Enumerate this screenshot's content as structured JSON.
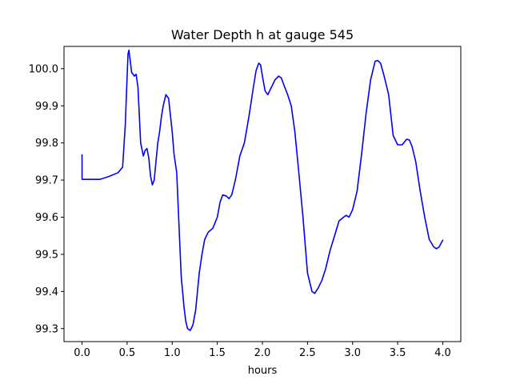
{
  "chart_data": {
    "type": "line",
    "title": "Water Depth h at gauge 545",
    "xlabel": "hours",
    "ylabel": "",
    "xlim": [
      -0.2,
      4.2
    ],
    "ylim": [
      99.265,
      100.06
    ],
    "xticks": [
      0.0,
      0.5,
      1.0,
      1.5,
      2.0,
      2.5,
      3.0,
      3.5,
      4.0
    ],
    "xtick_labels": [
      "0.0",
      "0.5",
      "1.0",
      "1.5",
      "2.0",
      "2.5",
      "3.0",
      "3.5",
      "4.0"
    ],
    "yticks": [
      99.3,
      99.4,
      99.5,
      99.6,
      99.7,
      99.8,
      99.9,
      100.0
    ],
    "ytick_labels": [
      "99.3",
      "99.4",
      "99.5",
      "99.6",
      "99.7",
      "99.8",
      "99.9",
      "100.0"
    ],
    "grid": false,
    "series": [
      {
        "color": "#0000ff",
        "x": [
          0.0,
          0.0,
          0.05,
          0.1,
          0.2,
          0.3,
          0.4,
          0.45,
          0.48,
          0.5,
          0.51,
          0.52,
          0.53,
          0.55,
          0.58,
          0.6,
          0.62,
          0.65,
          0.68,
          0.7,
          0.72,
          0.74,
          0.76,
          0.78,
          0.8,
          0.82,
          0.84,
          0.86,
          0.88,
          0.9,
          0.93,
          0.96,
          1.0,
          1.02,
          1.05,
          1.08,
          1.1,
          1.13,
          1.15,
          1.17,
          1.2,
          1.23,
          1.26,
          1.28,
          1.3,
          1.33,
          1.36,
          1.4,
          1.45,
          1.5,
          1.53,
          1.56,
          1.6,
          1.63,
          1.66,
          1.7,
          1.75,
          1.8,
          1.85,
          1.9,
          1.93,
          1.96,
          1.98,
          2.0,
          2.03,
          2.06,
          2.1,
          2.14,
          2.18,
          2.21,
          2.24,
          2.28,
          2.32,
          2.36,
          2.4,
          2.45,
          2.5,
          2.55,
          2.58,
          2.62,
          2.66,
          2.7,
          2.75,
          2.8,
          2.85,
          2.9,
          2.93,
          2.96,
          3.0,
          3.05,
          3.1,
          3.15,
          3.2,
          3.25,
          3.28,
          3.31,
          3.35,
          3.4,
          3.45,
          3.5,
          3.55,
          3.6,
          3.63,
          3.66,
          3.7,
          3.75,
          3.8,
          3.85,
          3.9,
          3.93,
          3.96,
          4.0
        ],
        "y": [
          99.768,
          99.702,
          99.702,
          99.702,
          99.702,
          99.71,
          99.72,
          99.735,
          99.85,
          99.98,
          100.04,
          100.05,
          100.03,
          99.99,
          99.98,
          99.985,
          99.95,
          99.8,
          99.765,
          99.78,
          99.785,
          99.76,
          99.71,
          99.687,
          99.7,
          99.75,
          99.8,
          99.83,
          99.87,
          99.9,
          99.93,
          99.92,
          99.83,
          99.77,
          99.72,
          99.55,
          99.44,
          99.36,
          99.32,
          99.3,
          99.295,
          99.31,
          99.35,
          99.4,
          99.45,
          99.5,
          99.54,
          99.56,
          99.57,
          99.6,
          99.64,
          99.66,
          99.657,
          99.65,
          99.66,
          99.7,
          99.765,
          99.8,
          99.87,
          99.95,
          99.995,
          100.015,
          100.01,
          99.98,
          99.94,
          99.93,
          99.95,
          99.97,
          99.98,
          99.975,
          99.955,
          99.93,
          99.9,
          99.83,
          99.73,
          99.6,
          99.45,
          99.4,
          99.395,
          99.41,
          99.43,
          99.46,
          99.51,
          99.55,
          99.59,
          99.6,
          99.605,
          99.6,
          99.62,
          99.67,
          99.77,
          99.88,
          99.97,
          100.02,
          100.022,
          100.015,
          99.98,
          99.93,
          99.82,
          99.795,
          99.795,
          99.81,
          99.808,
          99.79,
          99.75,
          99.67,
          99.6,
          99.54,
          99.52,
          99.515,
          99.52,
          99.538
        ]
      }
    ]
  }
}
